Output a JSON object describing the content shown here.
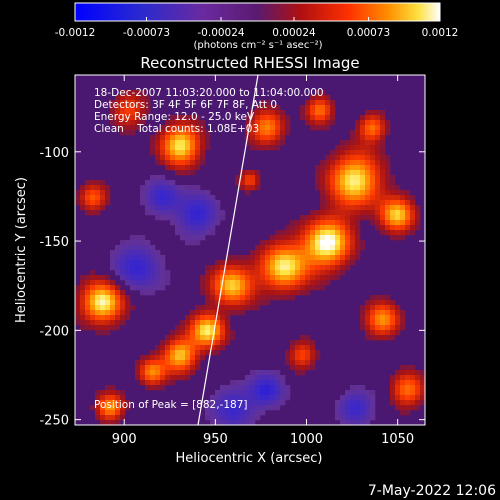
{
  "colorbar": {
    "ticks": [
      "-0.0012",
      "-0.00073",
      "-0.00024",
      "0.00024",
      "0.00073",
      "0.0012"
    ],
    "tick_values": [
      -0.0012,
      -0.00073,
      -0.00024,
      0.00024,
      0.00073,
      0.0012
    ],
    "unit_label": "(photons cm⁻² s⁻¹ asec⁻²)"
  },
  "chart_data": {
    "type": "heatmap",
    "title": "Reconstructed RHESSI Image",
    "xlabel": "Heliocentric X (arcsec)",
    "ylabel": "Heliocentric Y (arcsec)",
    "x_ticks": [
      "900",
      "950",
      "1000",
      "1050"
    ],
    "x_tick_values": [
      900,
      950,
      1000,
      1050
    ],
    "y_ticks": [
      "-100",
      "-150",
      "-200",
      "-250"
    ],
    "y_tick_values": [
      -100,
      -150,
      -200,
      -250
    ],
    "xlim": [
      873,
      1065
    ],
    "ylim": [
      -253,
      -57
    ],
    "colormap": "rhessi-blue-purple-red-yellow-white",
    "value_range": [
      -0.0012,
      0.0012
    ],
    "peak": {
      "x": 882,
      "y": -187
    },
    "annotations": [
      "18-Dec-2007 11:03:20.000 to 11:04:00.000",
      "Detectors: 3F 4F 5F 6F 7F 8F, Att 0",
      "Energy Range: 12.0 - 25.0 keV",
      "Clean    Total counts: 1.08E+03"
    ],
    "peak_label": "Position of Peak = [882,-187]"
  },
  "footer": {
    "timestamp": "7-May-2022 12:06"
  }
}
